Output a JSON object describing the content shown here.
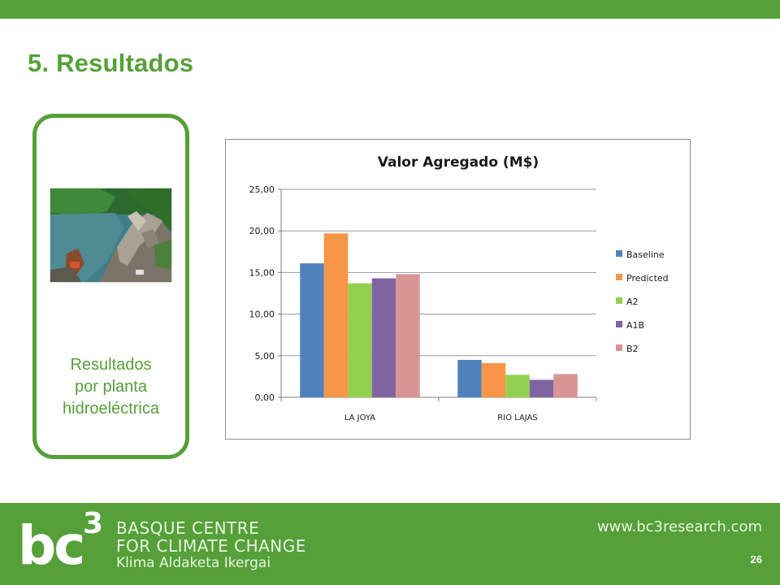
{
  "slide": {
    "title": "5. Resultados",
    "card_caption": [
      "Resultados",
      "por planta",
      "hidroeléctrica"
    ],
    "page_number": "26"
  },
  "footer": {
    "logo_text": "bc³",
    "org_lines": [
      "BASQUE CENTRE",
      "FOR CLIMATE CHANGE",
      "Klima Aldaketa Ikergai"
    ],
    "website": "www.bc3research.com"
  },
  "colors": {
    "brand_green": "#55a038"
  },
  "chart_data": {
    "type": "bar",
    "title": "Valor Agregado (M$)",
    "categories": [
      "LA JOYA",
      "RIO LAJAS"
    ],
    "series": [
      {
        "name": "Baseline",
        "values": [
          16.1,
          4.5
        ],
        "color": "#4f81bd"
      },
      {
        "name": "Predicted",
        "values": [
          19.7,
          4.1
        ],
        "color": "#f79646"
      },
      {
        "name": "A2",
        "values": [
          13.7,
          2.7
        ],
        "color": "#92d050"
      },
      {
        "name": "A1B",
        "values": [
          14.3,
          2.1
        ],
        "color": "#8064a2"
      },
      {
        "name": "B2",
        "values": [
          14.8,
          2.8
        ],
        "color": "#d99594"
      }
    ],
    "ylim": [
      0,
      25
    ],
    "yticks": [
      "0,00",
      "5,00",
      "10,00",
      "15,00",
      "20,00",
      "25,00"
    ],
    "grid": true,
    "legend": "right"
  }
}
